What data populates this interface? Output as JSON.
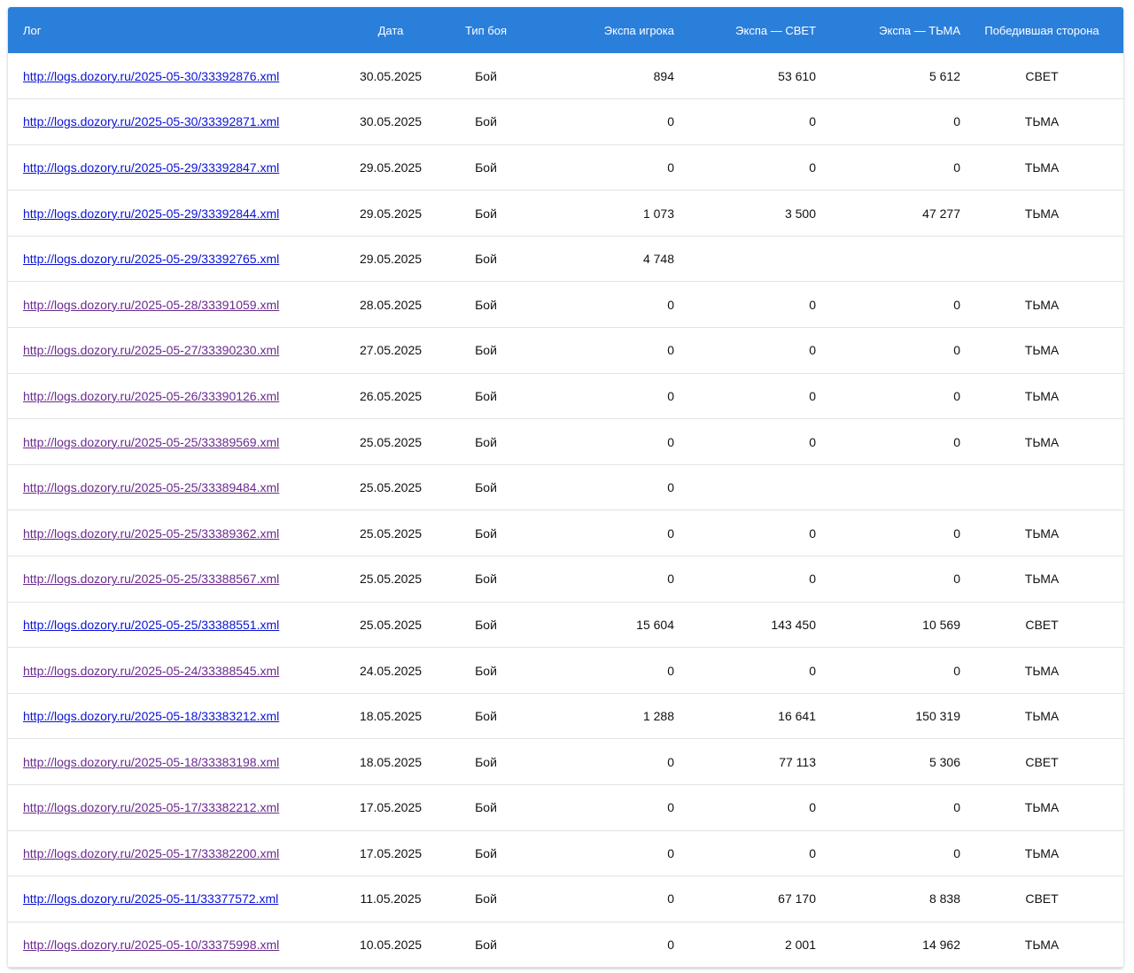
{
  "colors": {
    "header_bg": "#2a7fdb",
    "link": "#0b13d6",
    "link_visited": "#6a2a8e"
  },
  "table": {
    "headers": {
      "log": "Лог",
      "date": "Дата",
      "type": "Тип боя",
      "player_exp": "Экспа игрока",
      "exp_light": "Экспа — СВЕТ",
      "exp_dark": "Экспа — ТЬМА",
      "winner": "Победившая сторона"
    },
    "rows": [
      {
        "log": "http://logs.dozory.ru/2025-05-30/33392876.xml",
        "visited": false,
        "date": "30.05.2025",
        "type": "Бой",
        "player_exp": "894",
        "exp_light": "53 610",
        "exp_dark": "5 612",
        "winner": "СВЕТ"
      },
      {
        "log": "http://logs.dozory.ru/2025-05-30/33392871.xml",
        "visited": false,
        "date": "30.05.2025",
        "type": "Бой",
        "player_exp": "0",
        "exp_light": "0",
        "exp_dark": "0",
        "winner": "ТЬМА"
      },
      {
        "log": "http://logs.dozory.ru/2025-05-29/33392847.xml",
        "visited": false,
        "date": "29.05.2025",
        "type": "Бой",
        "player_exp": "0",
        "exp_light": "0",
        "exp_dark": "0",
        "winner": "ТЬМА"
      },
      {
        "log": "http://logs.dozory.ru/2025-05-29/33392844.xml",
        "visited": false,
        "date": "29.05.2025",
        "type": "Бой",
        "player_exp": "1 073",
        "exp_light": "3 500",
        "exp_dark": "47 277",
        "winner": "ТЬМА"
      },
      {
        "log": "http://logs.dozory.ru/2025-05-29/33392765.xml",
        "visited": false,
        "date": "29.05.2025",
        "type": "Бой",
        "player_exp": "4 748",
        "exp_light": "",
        "exp_dark": "",
        "winner": ""
      },
      {
        "log": "http://logs.dozory.ru/2025-05-28/33391059.xml",
        "visited": true,
        "date": "28.05.2025",
        "type": "Бой",
        "player_exp": "0",
        "exp_light": "0",
        "exp_dark": "0",
        "winner": "ТЬМА"
      },
      {
        "log": "http://logs.dozory.ru/2025-05-27/33390230.xml",
        "visited": true,
        "date": "27.05.2025",
        "type": "Бой",
        "player_exp": "0",
        "exp_light": "0",
        "exp_dark": "0",
        "winner": "ТЬМА"
      },
      {
        "log": "http://logs.dozory.ru/2025-05-26/33390126.xml",
        "visited": true,
        "date": "26.05.2025",
        "type": "Бой",
        "player_exp": "0",
        "exp_light": "0",
        "exp_dark": "0",
        "winner": "ТЬМА"
      },
      {
        "log": "http://logs.dozory.ru/2025-05-25/33389569.xml",
        "visited": true,
        "date": "25.05.2025",
        "type": "Бой",
        "player_exp": "0",
        "exp_light": "0",
        "exp_dark": "0",
        "winner": "ТЬМА"
      },
      {
        "log": "http://logs.dozory.ru/2025-05-25/33389484.xml",
        "visited": true,
        "date": "25.05.2025",
        "type": "Бой",
        "player_exp": "0",
        "exp_light": "",
        "exp_dark": "",
        "winner": ""
      },
      {
        "log": "http://logs.dozory.ru/2025-05-25/33389362.xml",
        "visited": true,
        "date": "25.05.2025",
        "type": "Бой",
        "player_exp": "0",
        "exp_light": "0",
        "exp_dark": "0",
        "winner": "ТЬМА"
      },
      {
        "log": "http://logs.dozory.ru/2025-05-25/33388567.xml",
        "visited": true,
        "date": "25.05.2025",
        "type": "Бой",
        "player_exp": "0",
        "exp_light": "0",
        "exp_dark": "0",
        "winner": "ТЬМА"
      },
      {
        "log": "http://logs.dozory.ru/2025-05-25/33388551.xml",
        "visited": false,
        "date": "25.05.2025",
        "type": "Бой",
        "player_exp": "15 604",
        "exp_light": "143 450",
        "exp_dark": "10 569",
        "winner": "СВЕТ"
      },
      {
        "log": "http://logs.dozory.ru/2025-05-24/33388545.xml",
        "visited": true,
        "date": "24.05.2025",
        "type": "Бой",
        "player_exp": "0",
        "exp_light": "0",
        "exp_dark": "0",
        "winner": "ТЬМА"
      },
      {
        "log": "http://logs.dozory.ru/2025-05-18/33383212.xml",
        "visited": false,
        "date": "18.05.2025",
        "type": "Бой",
        "player_exp": "1 288",
        "exp_light": "16 641",
        "exp_dark": "150 319",
        "winner": "ТЬМА"
      },
      {
        "log": "http://logs.dozory.ru/2025-05-18/33383198.xml",
        "visited": true,
        "date": "18.05.2025",
        "type": "Бой",
        "player_exp": "0",
        "exp_light": "77 113",
        "exp_dark": "5 306",
        "winner": "СВЕТ"
      },
      {
        "log": "http://logs.dozory.ru/2025-05-17/33382212.xml",
        "visited": true,
        "date": "17.05.2025",
        "type": "Бой",
        "player_exp": "0",
        "exp_light": "0",
        "exp_dark": "0",
        "winner": "ТЬМА"
      },
      {
        "log": "http://logs.dozory.ru/2025-05-17/33382200.xml",
        "visited": true,
        "date": "17.05.2025",
        "type": "Бой",
        "player_exp": "0",
        "exp_light": "0",
        "exp_dark": "0",
        "winner": "ТЬМА"
      },
      {
        "log": "http://logs.dozory.ru/2025-05-11/33377572.xml",
        "visited": false,
        "date": "11.05.2025",
        "type": "Бой",
        "player_exp": "0",
        "exp_light": "67 170",
        "exp_dark": "8 838",
        "winner": "СВЕТ"
      },
      {
        "log": "http://logs.dozory.ru/2025-05-10/33375998.xml",
        "visited": true,
        "date": "10.05.2025",
        "type": "Бой",
        "player_exp": "0",
        "exp_light": "2 001",
        "exp_dark": "14 962",
        "winner": "ТЬМА"
      }
    ]
  }
}
